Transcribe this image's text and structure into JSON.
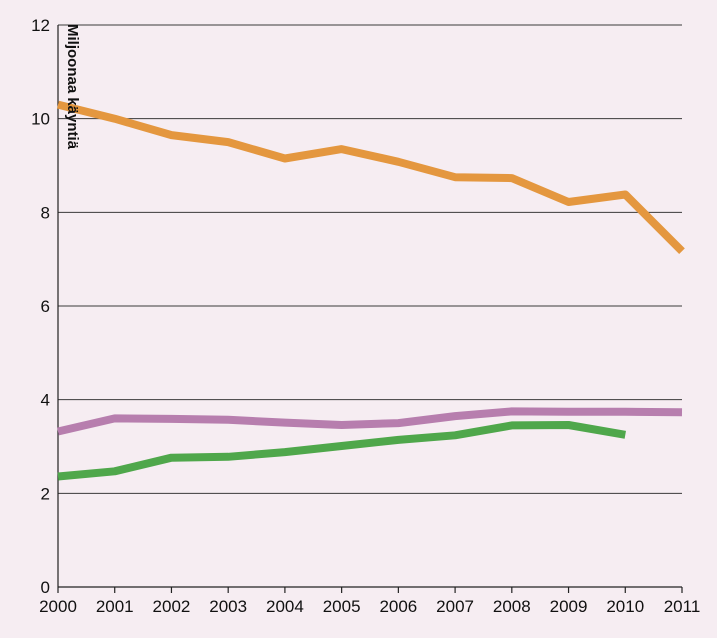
{
  "chart_data": {
    "type": "line",
    "ylabel": "Miljoonaa käyntiä",
    "xlabel": "",
    "title": "",
    "x": [
      "2000",
      "2001",
      "2002",
      "2003",
      "2004",
      "2005",
      "2006",
      "2007",
      "2008",
      "2009",
      "2010",
      "2011"
    ],
    "yticks": [
      "0",
      "2",
      "4",
      "6",
      "8",
      "10",
      "12"
    ],
    "ylim": [
      0,
      12
    ],
    "grid": true,
    "legend": "none",
    "series": [
      {
        "color": "#e4973f",
        "values": [
          10.3,
          10.0,
          9.65,
          9.5,
          9.15,
          9.35,
          9.08,
          8.75,
          8.73,
          8.22,
          8.38,
          7.17
        ]
      },
      {
        "color": "#b77eae",
        "values": [
          3.32,
          3.6,
          3.59,
          3.57,
          3.51,
          3.46,
          3.5,
          3.65,
          3.75,
          3.74,
          3.74,
          3.73
        ]
      },
      {
        "color": "#4fa74b",
        "values": [
          2.36,
          2.47,
          2.76,
          2.78,
          2.88,
          3.01,
          3.14,
          3.24,
          3.45,
          3.46,
          3.25,
          null
        ]
      }
    ]
  }
}
